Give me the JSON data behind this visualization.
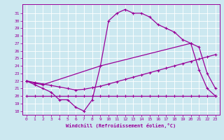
{
  "title": "",
  "xlabel": "Windchill (Refroidissement éolien,°C)",
  "bg_color": "#cce8f0",
  "line_color": "#990099",
  "grid_color": "#ffffff",
  "ylim": [
    17.5,
    32.2
  ],
  "xlim": [
    -0.5,
    23.5
  ],
  "yticks": [
    18,
    19,
    20,
    21,
    22,
    23,
    24,
    25,
    26,
    27,
    28,
    29,
    30,
    31
  ],
  "xticks": [
    0,
    1,
    2,
    3,
    4,
    5,
    6,
    7,
    8,
    9,
    10,
    11,
    12,
    13,
    14,
    15,
    16,
    17,
    18,
    19,
    20,
    21,
    22,
    23
  ],
  "line1_x": [
    0,
    1,
    2,
    3,
    4,
    5,
    6,
    7,
    8,
    9,
    10,
    11,
    12,
    13,
    14,
    15,
    16,
    17,
    18,
    19,
    20,
    21,
    22,
    23
  ],
  "line1_y": [
    22,
    21.5,
    21,
    20.5,
    19.5,
    19.5,
    18.5,
    18,
    19.5,
    24,
    30,
    31,
    31.5,
    31,
    31,
    30.5,
    29.5,
    29,
    28.5,
    27.5,
    27,
    23.5,
    21,
    20
  ],
  "line2_x": [
    0,
    1,
    2,
    9,
    20,
    21,
    22,
    23
  ],
  "line2_y": [
    22,
    21.7,
    21.5,
    24,
    27,
    26.5,
    23,
    21
  ],
  "line3_x": [
    0,
    1,
    2,
    3,
    4,
    5,
    6,
    7,
    8,
    9,
    10,
    11,
    12,
    13,
    14,
    15,
    16,
    17,
    18,
    19,
    20,
    21,
    22,
    23
  ],
  "line3_y": [
    22.0,
    21.8,
    21.6,
    21.4,
    21.2,
    21.0,
    20.8,
    20.9,
    21.1,
    21.3,
    21.6,
    21.9,
    22.2,
    22.5,
    22.8,
    23.1,
    23.4,
    23.7,
    24.0,
    24.3,
    24.6,
    24.9,
    25.2,
    25.5
  ],
  "flat_x": [
    0,
    1,
    2,
    3,
    4,
    5,
    6,
    7,
    8,
    9,
    10,
    11,
    12,
    13,
    14,
    15,
    16,
    17,
    18,
    19,
    20,
    21,
    22,
    23
  ],
  "flat_y": [
    20,
    20,
    20,
    20,
    20,
    20,
    20,
    20,
    20,
    20,
    20,
    20,
    20,
    20,
    20,
    20,
    20,
    20,
    20,
    20,
    20,
    20,
    20,
    20
  ]
}
